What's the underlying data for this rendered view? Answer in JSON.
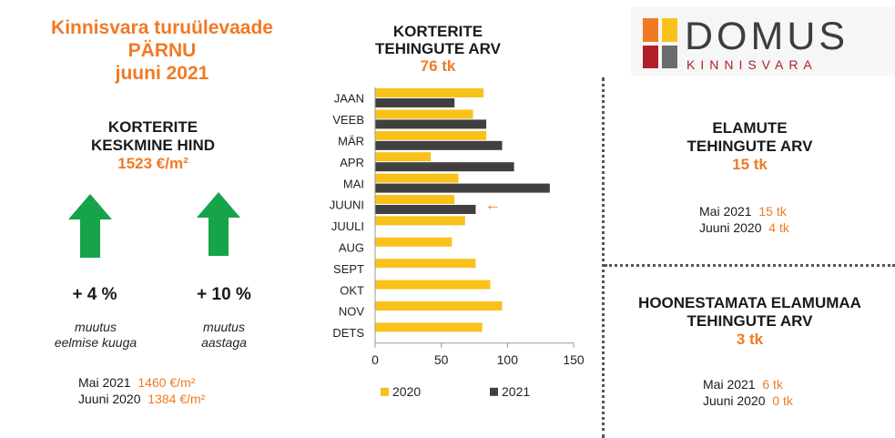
{
  "header": {
    "line1": "Kinnisvara turuülevaade",
    "line2": "PÄRNU",
    "line3": "juuni 2021"
  },
  "avg_price": {
    "title_line1": "KORTERITE",
    "title_line2": "KESKMINE HIND",
    "value": "1523 €/m²",
    "change_month": "+ 4 %",
    "change_month_note_line1": "muutus",
    "change_month_note_line2": "eelmise kuuga",
    "change_year": "+ 10 %",
    "change_year_note_line1": "muutus",
    "change_year_note_line2": "aastaga",
    "arrow_color": "#16a34a",
    "compare": [
      {
        "label": "Mai 2021",
        "value": "1460 €/m²"
      },
      {
        "label": "Juuni 2020",
        "value": "1384 €/m²"
      }
    ]
  },
  "apartments_chart": {
    "title_line1": "KORTERITE",
    "title_line2": "TEHINGUTE ARV",
    "value": "76 tk",
    "current_marker": "←"
  },
  "chart_data": {
    "type": "bar",
    "orientation": "horizontal",
    "categories": [
      "JAAN",
      "VEEB",
      "MÄR",
      "APR",
      "MAI",
      "JUUNI",
      "JUULI",
      "AUG",
      "SEPT",
      "OKT",
      "NOV",
      "DETS"
    ],
    "series": [
      {
        "name": "2020",
        "color": "#f9c21a",
        "values": [
          82,
          74,
          84,
          42,
          63,
          60,
          68,
          58,
          76,
          87,
          96,
          81
        ]
      },
      {
        "name": "2021",
        "color": "#404040",
        "values": [
          60,
          84,
          96,
          105,
          132,
          76,
          null,
          null,
          null,
          null,
          null,
          null
        ]
      }
    ],
    "xlim": [
      0,
      150
    ],
    "xticks": [
      0,
      50,
      100,
      150
    ],
    "grid": false,
    "legend": "bottom"
  },
  "houses": {
    "title_line1": "ELAMUTE",
    "title_line2": "TEHINGUTE ARV",
    "value": "15 tk",
    "compare": [
      {
        "label": "Mai 2021",
        "value": "15 tk"
      },
      {
        "label": "Juuni 2020",
        "value": "4 tk"
      }
    ]
  },
  "land": {
    "title_line1": "HOONESTAMATA ELAMUMAA",
    "title_line2": "TEHINGUTE ARV",
    "value": "3 tk",
    "compare": [
      {
        "label": "Mai 2021",
        "value": "6 tk"
      },
      {
        "label": "Juuni 2020",
        "value": "0 tk"
      }
    ]
  },
  "logo": {
    "word": "DOMUS",
    "sub": "KINNISVARA",
    "colors": [
      "#f07a24",
      "#f9c21a",
      "#b0202a",
      "#6b6b6b"
    ]
  }
}
